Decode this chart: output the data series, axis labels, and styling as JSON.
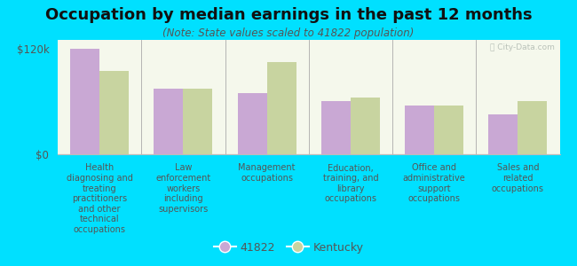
{
  "title": "Occupation by median earnings in the past 12 months",
  "subtitle": "(Note: State values scaled to 41822 population)",
  "background_outer": "#00e0ff",
  "background_inner": "#f5f8ec",
  "categories": [
    "Health\ndiagnosing and\ntreating\npractitioners\nand other\ntechnical\noccupations",
    "Law\nenforcement\nworkers\nincluding\nsupervisors",
    "Management\noccupations",
    "Education,\ntraining, and\nlibrary\noccupations",
    "Office and\nadministrative\nsupport\noccupations",
    "Sales and\nrelated\noccupations"
  ],
  "values_city": [
    120000,
    75000,
    70000,
    60000,
    55000,
    45000
  ],
  "values_state": [
    95000,
    75000,
    105000,
    65000,
    55000,
    60000
  ],
  "color_city": "#c9a8d4",
  "color_state": "#c8d4a0",
  "ylim": [
    0,
    130000
  ],
  "yticks": [
    0,
    120000
  ],
  "ytick_labels": [
    "$0",
    "$120k"
  ],
  "legend_label_city": "41822",
  "legend_label_state": "Kentucky",
  "bar_width": 0.35,
  "watermark": "Ⓡ City-Data.com",
  "title_fontsize": 13,
  "subtitle_fontsize": 8.5,
  "tick_label_fontsize": 7,
  "legend_fontsize": 9
}
